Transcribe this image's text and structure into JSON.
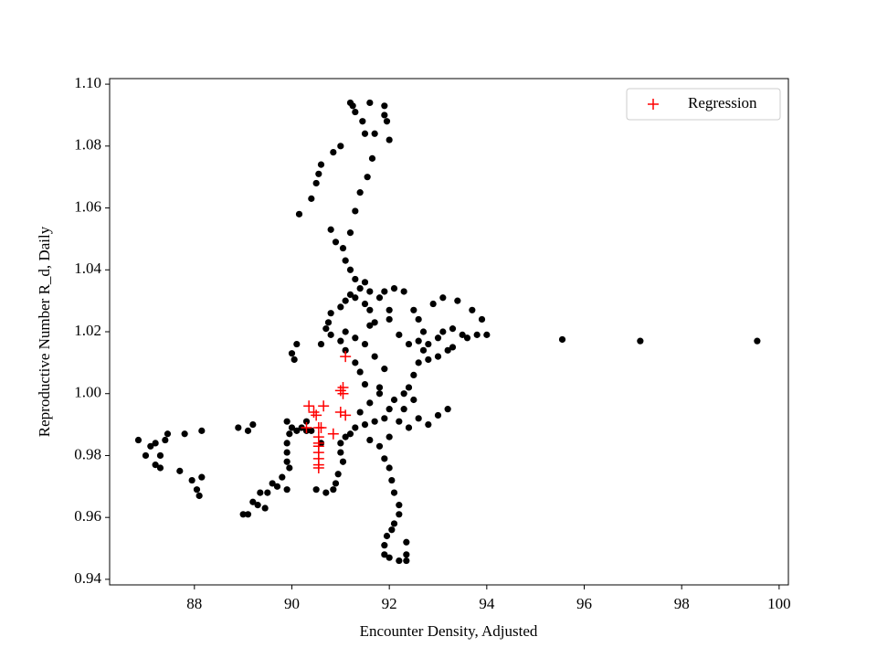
{
  "chart_data": {
    "type": "scatter",
    "xlabel": "Encounter Density, Adjusted",
    "ylabel": "Reproductive Number R_d, Daily",
    "xlim": [
      86.26,
      100.19
    ],
    "ylim": [
      0.9382,
      1.1018
    ],
    "xticks": [
      88,
      90,
      92,
      94,
      96,
      98,
      100
    ],
    "yticks": [
      0.94,
      0.96,
      0.98,
      {
        "value": 1,
        "label": "1.00"
      },
      1.02,
      1.04,
      1.06,
      1.08,
      {
        "value": 1.1,
        "label": "1.10"
      }
    ],
    "grid": false,
    "legend": "upper right",
    "series": [
      {
        "color": "#000000",
        "marker": "dot",
        "x": [
          86.85,
          87.0,
          87.1,
          87.2,
          87.2,
          87.3,
          87.3,
          87.4,
          87.45,
          87.7,
          87.8,
          87.95,
          88.05,
          88.1,
          88.15,
          88.15,
          88.9,
          89.0,
          89.1,
          89.1,
          89.2,
          89.2,
          89.3,
          89.35,
          89.45,
          89.5,
          89.6,
          89.7,
          89.8,
          89.9,
          89.9,
          90.0,
          89.95,
          89.9,
          89.9,
          89.9,
          89.95,
          90.1,
          90.2,
          90.3,
          90.0,
          90.05,
          90.1,
          90.15,
          90.4,
          90.5,
          90.55,
          90.6,
          90.85,
          91.0,
          91.2,
          91.25,
          91.3,
          91.45,
          91.5,
          91.6,
          91.9,
          91.9,
          91.95,
          92.0,
          91.7,
          91.65,
          91.55,
          91.4,
          91.3,
          91.2,
          90.8,
          90.9,
          91.05,
          91.1,
          91.2,
          91.3,
          91.4,
          91.5,
          91.6,
          90.7,
          90.75,
          90.8,
          91.0,
          91.1,
          91.2,
          91.3,
          91.5,
          91.6,
          91.8,
          91.9,
          92.1,
          92.3,
          92.5,
          92.6,
          92.7,
          92.6,
          92.7,
          92.8,
          93.0,
          93.1,
          93.3,
          93.5,
          93.6,
          93.8,
          94.0,
          93.9,
          93.7,
          93.4,
          93.1,
          92.9,
          93.2,
          93.3,
          93.0,
          92.8,
          92.6,
          92.5,
          92.4,
          92.3,
          92.1,
          92.0,
          91.9,
          91.7,
          91.5,
          91.3,
          91.1,
          91.0,
          91.0,
          91.05,
          90.95,
          90.9,
          90.85,
          90.7,
          90.5,
          91.2,
          91.4,
          91.6,
          91.8,
          91.5,
          91.4,
          91.3,
          91.1,
          91.0,
          91.1,
          91.3,
          91.5,
          91.7,
          91.9,
          91.8,
          92.2,
          92.4,
          92.6,
          92.8,
          93.0,
          93.2,
          92.3,
          92.5,
          92.0,
          91.8,
          91.6,
          91.9,
          92.0,
          92.05,
          92.1,
          92.2,
          92.2,
          92.1,
          92.05,
          91.95,
          91.9,
          91.9,
          92.0,
          92.2,
          92.35,
          92.35,
          92.35,
          90.3,
          90.4,
          90.6,
          90.6,
          90.8,
          92.0,
          92.2,
          92.4,
          92.0,
          91.7,
          91.6,
          95.55,
          97.15,
          99.55
        ],
        "values": [
          0.985,
          0.98,
          0.983,
          0.984,
          0.977,
          0.98,
          0.976,
          0.985,
          0.987,
          0.975,
          0.987,
          0.972,
          0.969,
          0.967,
          0.973,
          0.988,
          0.989,
          0.961,
          0.961,
          0.988,
          0.99,
          0.965,
          0.964,
          0.968,
          0.963,
          0.968,
          0.971,
          0.97,
          0.973,
          0.969,
          0.991,
          0.989,
          0.987,
          0.984,
          0.981,
          0.978,
          0.976,
          0.988,
          0.989,
          0.988,
          1.013,
          1.011,
          1.016,
          1.058,
          1.063,
          1.068,
          1.071,
          1.074,
          1.078,
          1.08,
          1.094,
          1.093,
          1.091,
          1.088,
          1.084,
          1.094,
          1.093,
          1.09,
          1.088,
          1.082,
          1.084,
          1.076,
          1.07,
          1.065,
          1.059,
          1.052,
          1.053,
          1.049,
          1.047,
          1.043,
          1.04,
          1.037,
          1.034,
          1.036,
          1.033,
          1.021,
          1.023,
          1.026,
          1.028,
          1.03,
          1.032,
          1.031,
          1.029,
          1.027,
          1.031,
          1.033,
          1.034,
          1.033,
          1.027,
          1.024,
          1.02,
          1.017,
          1.014,
          1.016,
          1.018,
          1.02,
          1.021,
          1.019,
          1.018,
          1.019,
          1.019,
          1.024,
          1.027,
          1.03,
          1.031,
          1.029,
          1.014,
          1.015,
          1.012,
          1.011,
          1.01,
          1.006,
          1.002,
          1.0,
          0.998,
          0.995,
          0.992,
          0.991,
          0.99,
          0.989,
          0.986,
          0.984,
          0.981,
          0.978,
          0.974,
          0.971,
          0.969,
          0.968,
          0.969,
          0.987,
          0.994,
          0.997,
          1.0,
          1.003,
          1.007,
          1.01,
          1.014,
          1.017,
          1.02,
          1.018,
          1.016,
          1.012,
          1.008,
          1.002,
          0.991,
          0.989,
          0.992,
          0.99,
          0.993,
          0.995,
          0.995,
          0.998,
          0.986,
          0.983,
          0.985,
          0.979,
          0.976,
          0.972,
          0.968,
          0.964,
          0.961,
          0.958,
          0.956,
          0.954,
          0.951,
          0.948,
          0.947,
          0.946,
          0.946,
          0.948,
          0.952,
          0.991,
          0.988,
          0.984,
          1.016,
          1.019,
          1.024,
          1.019,
          1.016,
          1.027,
          1.023,
          1.022,
          1.0175,
          1.017,
          1.017
        ]
      },
      {
        "name": "Regression",
        "color": "#ff0000",
        "marker": "plus",
        "x": [
          90.3,
          90.35,
          90.45,
          90.5,
          90.55,
          90.6,
          90.55,
          90.55,
          90.55,
          90.55,
          90.55,
          90.55,
          90.55,
          90.65,
          90.85,
          91.0,
          91.05,
          91.05,
          91.0,
          91.1,
          91.1
        ],
        "values": [
          0.989,
          0.996,
          0.994,
          0.993,
          0.989,
          0.989,
          0.986,
          0.983,
          0.981,
          0.979,
          0.977,
          0.976,
          0.984,
          0.996,
          0.987,
          0.994,
          1.0,
          1.002,
          1.001,
          0.993,
          1.012
        ]
      }
    ]
  }
}
